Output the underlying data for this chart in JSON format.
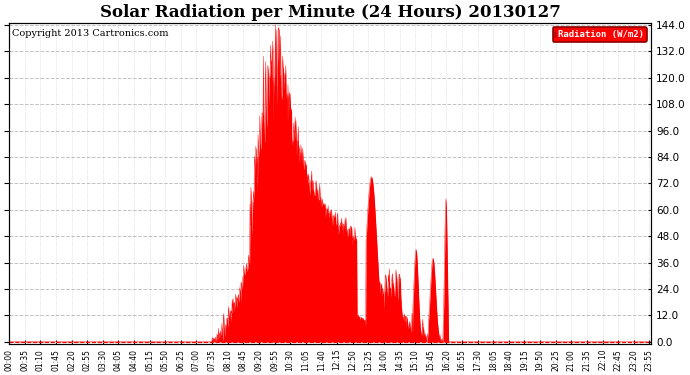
{
  "title": "Solar Radiation per Minute (24 Hours) 20130127",
  "copyright": "Copyright 2013 Cartronics.com",
  "legend_label": "Radiation (W/m2)",
  "ylim": [
    0.0,
    144.0
  ],
  "yticks": [
    0.0,
    12.0,
    24.0,
    36.0,
    48.0,
    60.0,
    72.0,
    84.0,
    96.0,
    108.0,
    120.0,
    132.0,
    144.0
  ],
  "bg_color": "#ffffff",
  "plot_bg_color": "#ffffff",
  "grid_color": "#bbbbbb",
  "fill_color": "#ff0000",
  "line_color": "#ff0000",
  "zero_line_color": "#ff0000",
  "title_fontsize": 12,
  "copyright_fontsize": 7,
  "tick_interval_minutes": 35
}
